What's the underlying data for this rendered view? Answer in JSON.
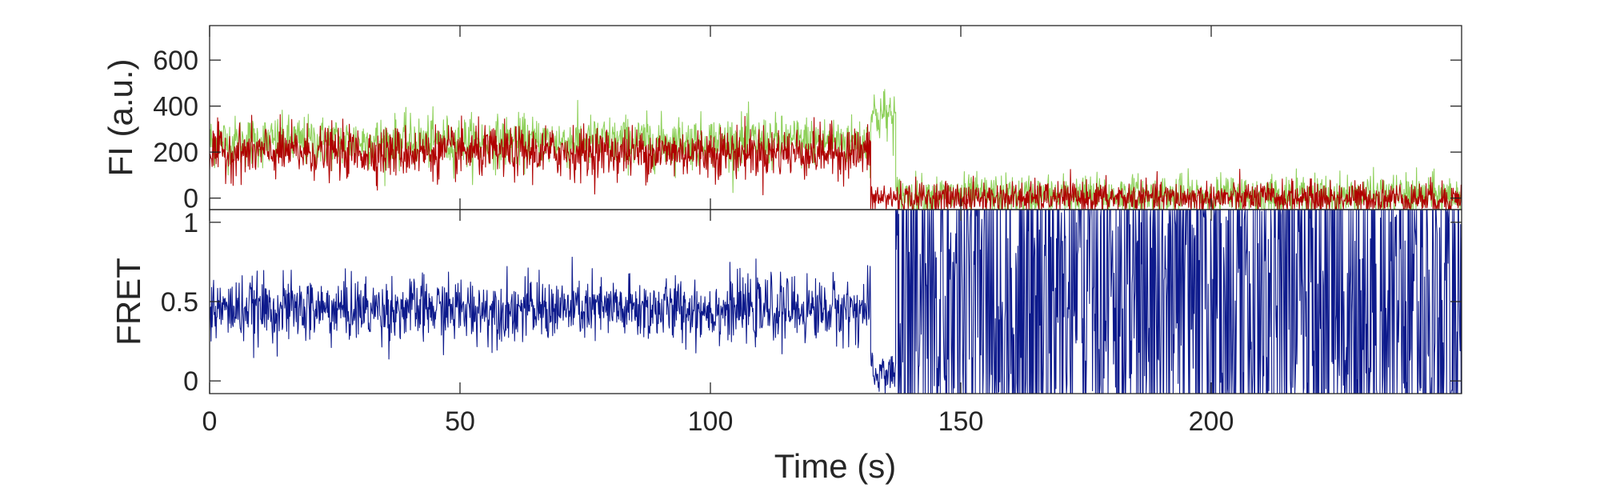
{
  "chart_data": [
    {
      "type": "line",
      "panel": "top",
      "ylabel": "FI (a.u.)",
      "xlim": [
        0,
        250
      ],
      "ylim": [
        -50,
        750
      ],
      "yticks": [
        0,
        200,
        400,
        600
      ],
      "ytick_labels": [
        "0",
        "200",
        "400",
        "600"
      ],
      "x_resolution": 0.1,
      "series": [
        {
          "color": "#8ed05a",
          "segments": [
            {
              "x_start": 0,
              "x_end": 132,
              "mean": 245,
              "noise": 55
            },
            {
              "x_start": 132,
              "x_end": 137,
              "mean": 360,
              "noise": 60
            },
            {
              "x_start": 137,
              "x_end": 250,
              "mean": 10,
              "noise": 45
            }
          ]
        },
        {
          "color": "#b00000",
          "segments": [
            {
              "x_start": 0,
              "x_end": 132,
              "mean": 200,
              "noise": 55
            },
            {
              "x_start": 132,
              "x_end": 250,
              "mean": 0,
              "noise": 35
            }
          ]
        }
      ]
    },
    {
      "type": "line",
      "panel": "bottom",
      "ylabel": "FRET",
      "xlabel": "Time (s)",
      "xlim": [
        0,
        250
      ],
      "ylim": [
        -0.08,
        1.08
      ],
      "xticks": [
        0,
        50,
        100,
        150,
        200
      ],
      "xtick_labels": [
        "0",
        "50",
        "100",
        "150",
        "200"
      ],
      "yticks": [
        0,
        0.5,
        1
      ],
      "ytick_labels": [
        "0",
        "0.5",
        "1"
      ],
      "x_resolution": 0.1,
      "series": [
        {
          "color": "#0d1a8c",
          "segments": [
            {
              "x_start": 0,
              "x_end": 132,
              "mean": 0.45,
              "noise": 0.1
            },
            {
              "x_start": 132,
              "x_end": 137,
              "mean": 0.05,
              "noise": 0.08
            },
            {
              "x_start": 137,
              "x_end": 250,
              "mean": 0.5,
              "noise": 0.9
            }
          ]
        }
      ]
    }
  ]
}
